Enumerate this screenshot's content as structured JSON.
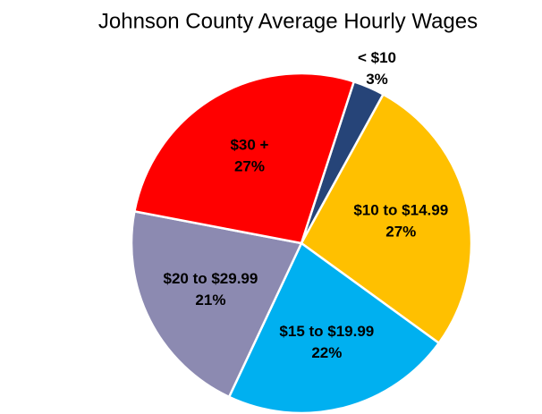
{
  "chart_data": {
    "type": "pie",
    "title": "Johnson County Average Hourly Wages",
    "categories": [
      "< $10",
      "$10 to $14.99",
      "$15 to $19.99",
      "$20 to $29.99",
      "$30 +"
    ],
    "values": [
      3,
      27,
      22,
      21,
      27
    ],
    "value_labels": [
      "3%",
      "27%",
      "22%",
      "21%",
      "27%"
    ],
    "colors": [
      "#264478",
      "#ffc000",
      "#00b0f0",
      "#8c8ab1",
      "#ff0000"
    ]
  }
}
